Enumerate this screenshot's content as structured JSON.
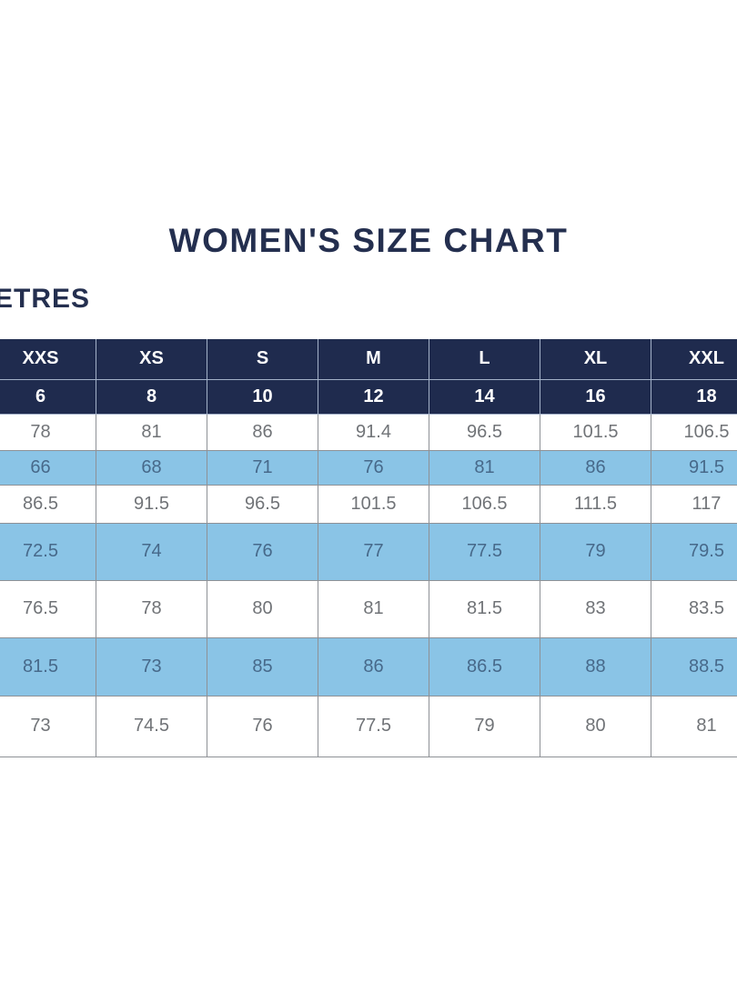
{
  "title": "WOMEN'S SIZE CHART",
  "unit_label": "ETRES",
  "colors": {
    "header_bg": "#1f2b4e",
    "header_text": "#ffffff",
    "alt_row_bg": "#8ac4e6",
    "alt_row_text": "#47698a",
    "row_bg": "#ffffff",
    "row_text": "#707377",
    "border": "#8e9196",
    "title_text": "#242f4f",
    "page_bg": "#ffffff"
  },
  "chart_data": {
    "type": "table",
    "title": "WOMEN'S SIZE CHART",
    "unit_label_visible": "ETRES",
    "columns": [
      "XXS",
      "XS",
      "S",
      "M",
      "L",
      "XL",
      "XXL"
    ],
    "numeric_sizes": [
      "6",
      "8",
      "10",
      "12",
      "14",
      "16",
      "18"
    ],
    "rows": [
      [
        "78",
        "81",
        "86",
        "91.4",
        "96.5",
        "101.5",
        "106.5"
      ],
      [
        "66",
        "68",
        "71",
        "76",
        "81",
        "86",
        "91.5"
      ],
      [
        "86.5",
        "91.5",
        "96.5",
        "101.5",
        "106.5",
        "111.5",
        "117"
      ],
      [
        "72.5",
        "74",
        "76",
        "77",
        "77.5",
        "79",
        "79.5"
      ],
      [
        "76.5",
        "78",
        "80",
        "81",
        "81.5",
        "83",
        "83.5"
      ],
      [
        "81.5",
        "73",
        "85",
        "86",
        "86.5",
        "88",
        "88.5"
      ],
      [
        "73",
        "74.5",
        "76",
        "77.5",
        "79",
        "80",
        "81"
      ]
    ],
    "layout_hints": {
      "left_label_column_cropped": true,
      "right_edge_cropped": true,
      "alternating_row_highlight": "rows 2, 4, 6 light blue",
      "grid": true
    }
  }
}
